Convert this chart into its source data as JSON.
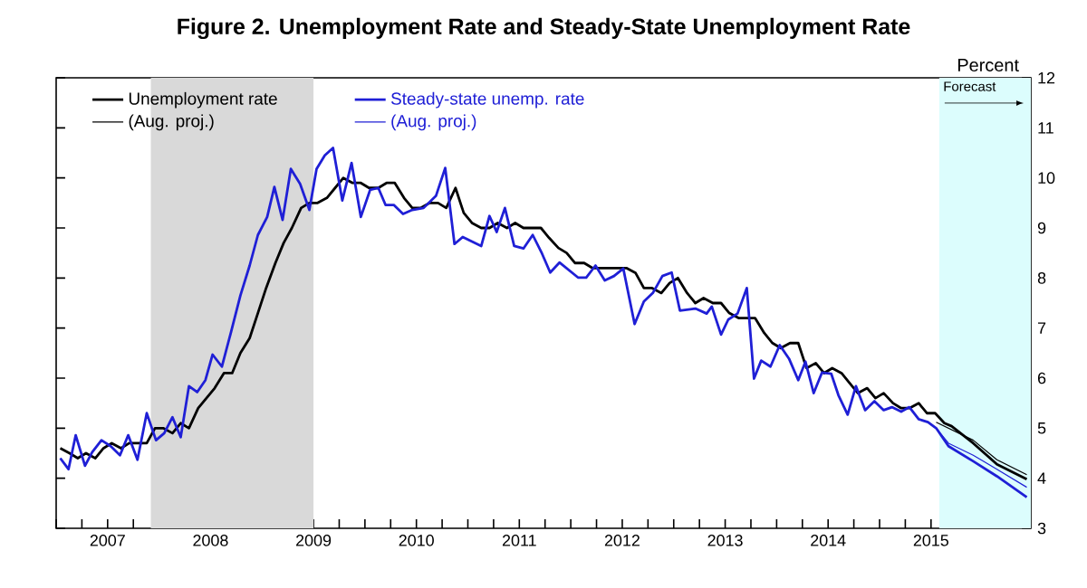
{
  "chart_data": {
    "type": "line",
    "title": "Figure 2.  Unemployment Rate and Steady-State Unemployment Rate",
    "ylabel": "Percent",
    "xlim": [
      2007,
      2016.47
    ],
    "ylim": [
      3,
      12
    ],
    "yticks": [
      3,
      4,
      5,
      6,
      7,
      8,
      9,
      10,
      11,
      12
    ],
    "xticks": [
      {
        "value": 2007,
        "label": null
      },
      {
        "value": 2007.25,
        "label": null
      },
      {
        "value": 2007.5,
        "label": "2007"
      },
      {
        "value": 2007.75,
        "label": null
      },
      {
        "value": 2008,
        "label": null
      },
      {
        "value": 2008.25,
        "label": null
      },
      {
        "value": 2008.5,
        "label": "2008"
      },
      {
        "value": 2008.75,
        "label": null
      },
      {
        "value": 2009,
        "label": null
      },
      {
        "value": 2009.25,
        "label": null
      },
      {
        "value": 2009.5,
        "label": "2009"
      },
      {
        "value": 2009.75,
        "label": null
      },
      {
        "value": 2010,
        "label": null
      },
      {
        "value": 2010.25,
        "label": null
      },
      {
        "value": 2010.5,
        "label": "2010"
      },
      {
        "value": 2010.75,
        "label": null
      },
      {
        "value": 2011,
        "label": null
      },
      {
        "value": 2011.25,
        "label": null
      },
      {
        "value": 2011.5,
        "label": "2011"
      },
      {
        "value": 2011.75,
        "label": null
      },
      {
        "value": 2012,
        "label": null
      },
      {
        "value": 2012.25,
        "label": null
      },
      {
        "value": 2012.5,
        "label": "2012"
      },
      {
        "value": 2012.75,
        "label": null
      },
      {
        "value": 2013,
        "label": null
      },
      {
        "value": 2013.25,
        "label": null
      },
      {
        "value": 2013.5,
        "label": "2013"
      },
      {
        "value": 2013.75,
        "label": null
      },
      {
        "value": 2014,
        "label": null
      },
      {
        "value": 2014.25,
        "label": null
      },
      {
        "value": 2014.5,
        "label": "2014"
      },
      {
        "value": 2014.75,
        "label": null
      },
      {
        "value": 2015,
        "label": null
      },
      {
        "value": 2015.25,
        "label": null
      },
      {
        "value": 2015.5,
        "label": "2015"
      },
      {
        "value": 2015.75,
        "label": null
      },
      {
        "value": 2016,
        "label": null
      },
      {
        "value": 2016.25,
        "label": null
      }
    ],
    "legend": "top left",
    "marker": "none",
    "line_style": "solid",
    "bands": [
      {
        "axis": "x",
        "from": 2007.92,
        "to": 2009.5,
        "color": "#d9d9d9"
      },
      {
        "axis": "x",
        "from": 2015.58,
        "to": 2016.47,
        "color": "#dcfdfd",
        "label": "Forecast"
      }
    ],
    "series": [
      {
        "name": "Unemployment rate",
        "color": "#000000",
        "x": [
          2007.04,
          2007.13,
          2007.21,
          2007.29,
          2007.38,
          2007.46,
          2007.54,
          2007.63,
          2007.71,
          2007.79,
          2007.88,
          2007.96,
          2008.04,
          2008.13,
          2008.21,
          2008.29,
          2008.38,
          2008.46,
          2008.54,
          2008.63,
          2008.71,
          2008.79,
          2008.88,
          2008.96,
          2009.04,
          2009.13,
          2009.21,
          2009.29,
          2009.38,
          2009.46,
          2009.54,
          2009.63,
          2009.71,
          2009.79,
          2009.88,
          2009.96,
          2010.04,
          2010.13,
          2010.21,
          2010.29,
          2010.38,
          2010.46,
          2010.54,
          2010.63,
          2010.71,
          2010.79,
          2010.88,
          2010.96,
          2011.04,
          2011.13,
          2011.21,
          2011.29,
          2011.38,
          2011.46,
          2011.54,
          2011.63,
          2011.71,
          2011.79,
          2011.88,
          2011.96,
          2012.04,
          2012.13,
          2012.21,
          2012.29,
          2012.38,
          2012.46,
          2012.54,
          2012.63,
          2012.71,
          2012.79,
          2012.88,
          2012.96,
          2013.04,
          2013.13,
          2013.21,
          2013.29,
          2013.38,
          2013.46,
          2013.54,
          2013.63,
          2013.71,
          2013.79,
          2013.88,
          2013.96,
          2014.04,
          2014.13,
          2014.21,
          2014.29,
          2014.38,
          2014.46,
          2014.54,
          2014.63,
          2014.71,
          2014.79,
          2014.88,
          2014.96,
          2015.04,
          2015.13,
          2015.21,
          2015.29,
          2015.38,
          2015.46,
          2015.54,
          2015.63,
          2015.7,
          2015.91,
          2016.14,
          2016.43
        ],
        "values": [
          4.6,
          4.5,
          4.4,
          4.5,
          4.4,
          4.6,
          4.7,
          4.6,
          4.7,
          4.7,
          4.7,
          5.0,
          5.0,
          4.9,
          5.1,
          5.0,
          5.4,
          5.6,
          5.8,
          6.1,
          6.1,
          6.5,
          6.8,
          7.3,
          7.8,
          8.3,
          8.7,
          9.0,
          9.4,
          9.5,
          9.5,
          9.6,
          9.8,
          10.0,
          9.9,
          9.9,
          9.8,
          9.8,
          9.9,
          9.9,
          9.6,
          9.4,
          9.4,
          9.5,
          9.5,
          9.4,
          9.8,
          9.3,
          9.1,
          9.0,
          9.0,
          9.1,
          9.0,
          9.1,
          9.0,
          9.0,
          9.0,
          8.8,
          8.6,
          8.5,
          8.3,
          8.3,
          8.2,
          8.2,
          8.2,
          8.2,
          8.2,
          8.1,
          7.8,
          7.8,
          7.7,
          7.9,
          8.0,
          7.7,
          7.5,
          7.6,
          7.5,
          7.5,
          7.3,
          7.2,
          7.2,
          7.2,
          6.9,
          6.7,
          6.6,
          6.7,
          6.7,
          6.2,
          6.3,
          6.1,
          6.2,
          6.1,
          5.9,
          5.7,
          5.8,
          5.6,
          5.7,
          5.5,
          5.4,
          5.4,
          5.5,
          5.3,
          5.3,
          5.1,
          5.04,
          4.7,
          4.28,
          3.98
        ]
      },
      {
        "name": "Steady-state unemp. rate",
        "color": "#1f1fd6",
        "x": [
          2007.04,
          2007.12,
          2007.19,
          2007.28,
          2007.35,
          2007.44,
          2007.53,
          2007.62,
          2007.7,
          2007.79,
          2007.88,
          2007.97,
          2008.05,
          2008.13,
          2008.21,
          2008.29,
          2008.37,
          2008.45,
          2008.52,
          2008.61,
          2008.7,
          2008.79,
          2008.88,
          2008.96,
          2009.05,
          2009.12,
          2009.2,
          2009.28,
          2009.37,
          2009.46,
          2009.53,
          2009.61,
          2009.69,
          2009.78,
          2009.87,
          2009.96,
          2010.05,
          2010.13,
          2010.2,
          2010.28,
          2010.37,
          2010.46,
          2010.57,
          2010.69,
          2010.78,
          2010.87,
          2010.95,
          2011.13,
          2011.21,
          2011.28,
          2011.36,
          2011.45,
          2011.54,
          2011.63,
          2011.72,
          2011.8,
          2011.89,
          2011.98,
          2012.07,
          2012.15,
          2012.24,
          2012.33,
          2012.42,
          2012.51,
          2012.62,
          2012.71,
          2012.8,
          2012.89,
          2012.98,
          2013.06,
          2013.21,
          2013.32,
          2013.37,
          2013.46,
          2013.53,
          2013.62,
          2013.71,
          2013.78,
          2013.85,
          2013.94,
          2014.03,
          2014.12,
          2014.21,
          2014.28,
          2014.36,
          2014.44,
          2014.53,
          2014.6,
          2014.69,
          2014.77,
          2014.86,
          2014.95,
          2015.04,
          2015.12,
          2015.21,
          2015.29,
          2015.38,
          2015.47,
          2015.55,
          2015.67,
          2015.91,
          2016.14,
          2016.43
        ],
        "values": [
          4.4,
          4.18,
          4.86,
          4.25,
          4.52,
          4.76,
          4.64,
          4.46,
          4.86,
          4.37,
          5.3,
          4.76,
          4.9,
          5.22,
          4.82,
          5.84,
          5.72,
          5.96,
          6.47,
          6.23,
          6.93,
          7.65,
          8.25,
          8.86,
          9.22,
          9.82,
          9.16,
          10.18,
          9.88,
          9.36,
          10.18,
          10.45,
          10.6,
          9.55,
          10.3,
          9.22,
          9.76,
          9.8,
          9.46,
          9.46,
          9.28,
          9.36,
          9.4,
          9.64,
          10.2,
          8.68,
          8.82,
          8.64,
          9.24,
          8.92,
          9.4,
          8.64,
          8.59,
          8.86,
          8.49,
          8.11,
          8.31,
          8.16,
          8.01,
          8.01,
          8.25,
          7.95,
          8.04,
          8.19,
          7.08,
          7.53,
          7.71,
          8.04,
          8.11,
          7.35,
          7.39,
          7.29,
          7.43,
          6.87,
          7.17,
          7.29,
          7.8,
          5.99,
          6.35,
          6.23,
          6.66,
          6.39,
          5.96,
          6.33,
          5.7,
          6.11,
          6.09,
          5.66,
          5.27,
          5.84,
          5.36,
          5.54,
          5.36,
          5.42,
          5.33,
          5.42,
          5.18,
          5.12,
          5.0,
          4.64,
          4.34,
          4.04,
          3.62
        ]
      },
      {
        "name": "(Aug. proj.)",
        "color": "#000000",
        "x": [
          2015.55,
          2015.91,
          2016.14,
          2016.43
        ],
        "values": [
          5.12,
          4.76,
          4.37,
          4.07
        ]
      },
      {
        "name": "(Aug. proj.)",
        "color": "#1f1fd6",
        "x": [
          2015.55,
          2015.67,
          2015.91,
          2016.14,
          2016.43
        ],
        "values": [
          5.0,
          4.7,
          4.46,
          4.18,
          3.82
        ]
      }
    ]
  }
}
